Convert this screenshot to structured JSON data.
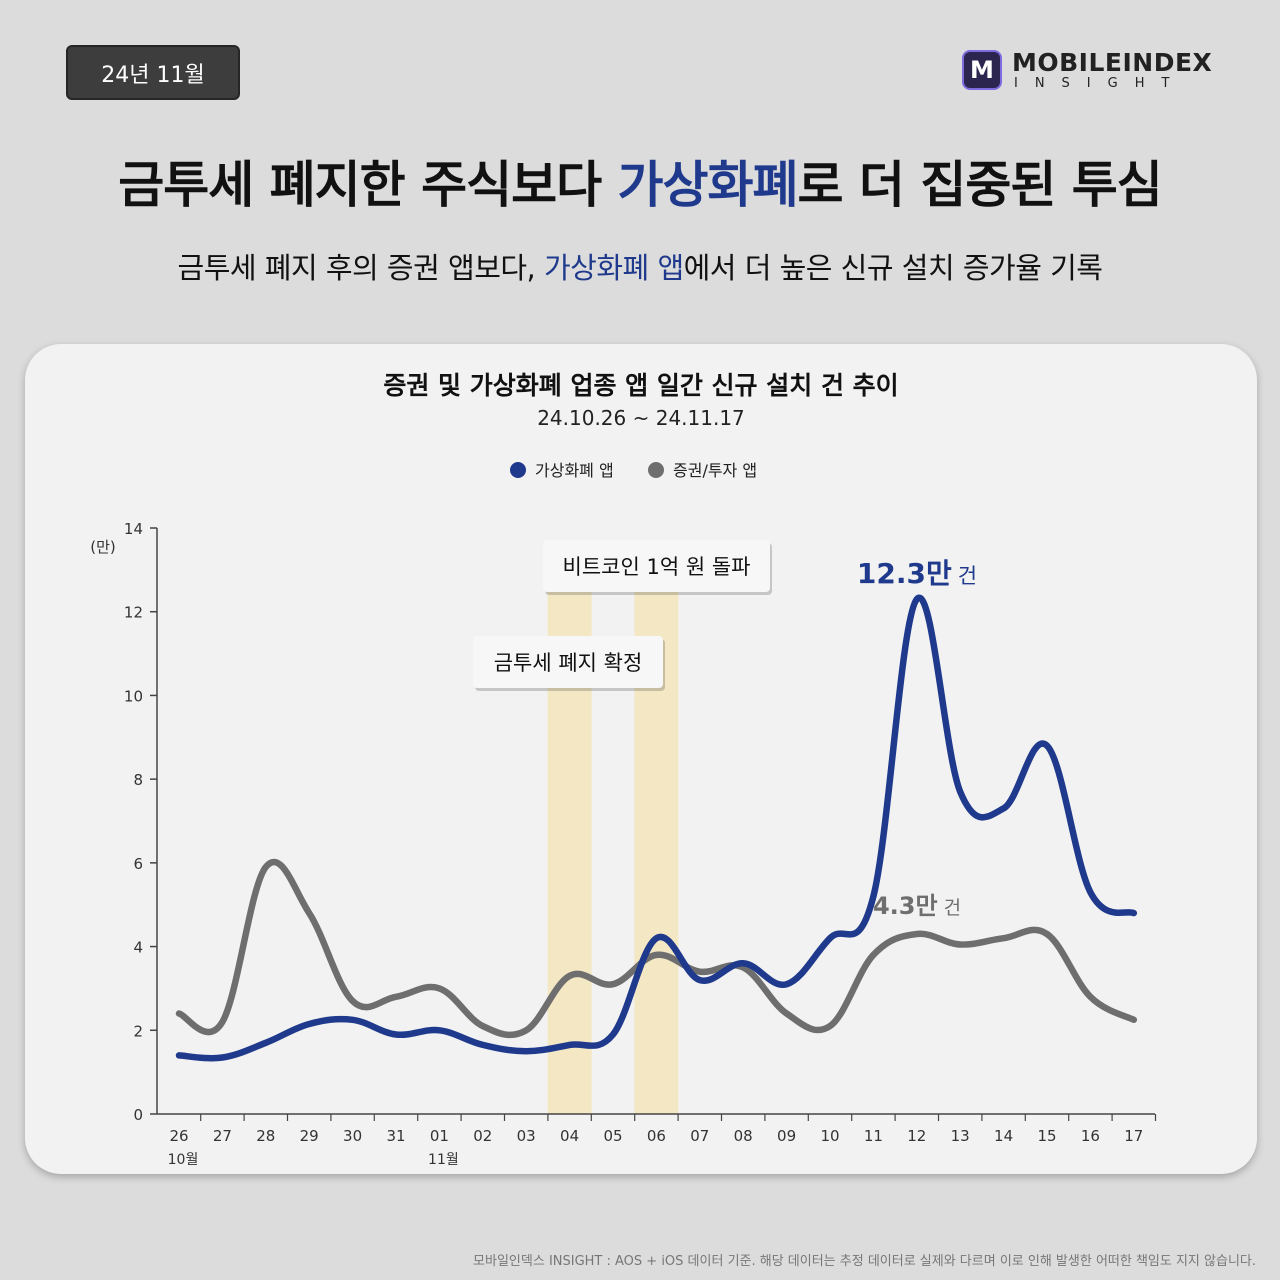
{
  "badge": {
    "date": "24년 11월"
  },
  "logo": {
    "name": "MOBILEINDEX",
    "sub": "INSIGHT",
    "mark": "M"
  },
  "headline": {
    "pre": "금투세 폐지한 주식보다 ",
    "highlight": "가상화폐",
    "post": "로 더 집중된 투심"
  },
  "subhead": {
    "pre": "금투세 폐지 후의 증권 앱보다, ",
    "highlight": "가상화폐 앱",
    "post": "에서 더 높은 신규 설치 증가율 기록"
  },
  "colors": {
    "crypto": "#1f3a8c",
    "securities": "#6e6e6e",
    "event_band": "#f3e7c4",
    "highlight": "#1f3a8c"
  },
  "chart_data": {
    "type": "line",
    "title": "증권 및 가상화폐 업종 앱 일간 신규 설치 건 추이",
    "subtitle": "24.10.26 ~ 24.11.17",
    "y_unit": "(만)",
    "ylim": [
      0,
      14
    ],
    "y_ticks": [
      "0",
      "2",
      "4",
      "6",
      "8",
      "10",
      "12",
      "14"
    ],
    "categories": [
      "26",
      "27",
      "28",
      "29",
      "30",
      "31",
      "01",
      "02",
      "03",
      "04",
      "05",
      "06",
      "07",
      "08",
      "09",
      "10",
      "11",
      "12",
      "13",
      "14",
      "15",
      "16",
      "17"
    ],
    "month_labels": [
      {
        "category": "26",
        "text": "10월"
      },
      {
        "category": "01",
        "text": "11월"
      }
    ],
    "legend_position": "top-center",
    "grid": false,
    "series": [
      {
        "name": "가상화폐 앱",
        "color": "#1f3a8c",
        "values": [
          1.4,
          1.35,
          1.7,
          2.15,
          2.25,
          1.9,
          2.0,
          1.65,
          1.5,
          1.65,
          1.9,
          4.2,
          3.2,
          3.6,
          3.1,
          4.2,
          5.2,
          12.3,
          7.7,
          7.3,
          8.8,
          5.3,
          4.8
        ]
      },
      {
        "name": "증권/투자 앱",
        "color": "#6e6e6e",
        "values": [
          2.4,
          2.2,
          5.9,
          4.8,
          2.7,
          2.8,
          3.0,
          2.1,
          2.0,
          3.3,
          3.1,
          3.8,
          3.4,
          3.5,
          2.4,
          2.1,
          3.8,
          4.3,
          4.05,
          4.2,
          4.3,
          2.8,
          2.25
        ]
      }
    ],
    "events": [
      {
        "label": "금투세 폐지 확정",
        "category": "04"
      },
      {
        "label": "비트코인 1억 원 돌파",
        "category": "06"
      }
    ],
    "annotations": [
      {
        "series": "가상화폐 앱",
        "category": "12",
        "value": "12.3만",
        "unit": "건"
      },
      {
        "series": "증권/투자 앱",
        "category": "12",
        "value": "4.3만",
        "unit": "건"
      }
    ]
  },
  "footnote": "모바일인덱스 INSIGHT : AOS + iOS 데이터 기준. 해당 데이터는 추정 데이터로 실제와 다르며 이로 인해 발생한 어떠한 책임도 지지 않습니다."
}
